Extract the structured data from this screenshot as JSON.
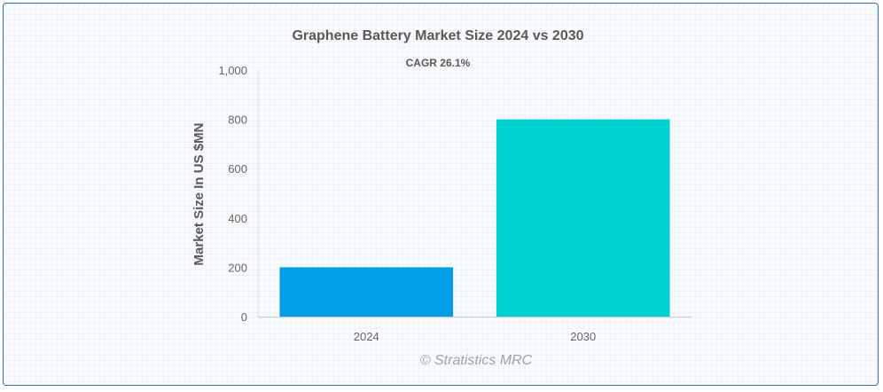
{
  "chart_data": {
    "type": "bar",
    "title": "Graphene Battery Market Size 2024 vs 2030",
    "subtitle": "CAGR 26.1%",
    "xlabel": "",
    "ylabel": "Market Size In US $MN",
    "categories": [
      "2024",
      "2030"
    ],
    "values": [
      200,
      800
    ],
    "colors": [
      "#009fe8",
      "#00d2d2"
    ],
    "ylim": [
      0,
      1000
    ],
    "yticks": [
      0,
      200,
      400,
      600,
      800,
      1000
    ],
    "ytick_labels": [
      "0",
      "200",
      "400",
      "600",
      "800",
      "1,000"
    ],
    "grid": false,
    "legend": "none"
  },
  "watermark": "© Stratistics MRC"
}
